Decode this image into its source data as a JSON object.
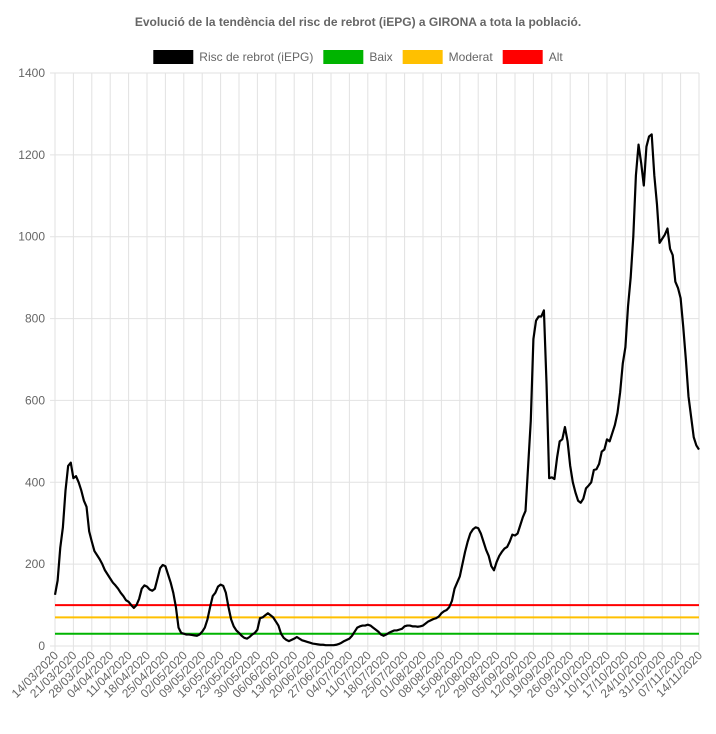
{
  "chart_data": {
    "type": "line",
    "title": "Evolució de la tendència del risc de rebrot (iEPG) a GIRONA a tota la població.",
    "categories": [
      "14/03/2020",
      null,
      null,
      null,
      null,
      null,
      null,
      "21/03/2020",
      null,
      null,
      null,
      null,
      null,
      null,
      "28/03/2020",
      null,
      null,
      null,
      null,
      null,
      null,
      "04/04/2020",
      null,
      null,
      null,
      null,
      null,
      null,
      "11/04/2020",
      null,
      null,
      null,
      null,
      null,
      null,
      "18/04/2020",
      null,
      null,
      null,
      null,
      null,
      null,
      "25/04/2020",
      null,
      null,
      null,
      null,
      null,
      null,
      "02/05/2020",
      null,
      null,
      null,
      null,
      null,
      null,
      "09/05/2020",
      null,
      null,
      null,
      null,
      null,
      null,
      "16/05/2020",
      null,
      null,
      null,
      null,
      null,
      null,
      "23/05/2020",
      null,
      null,
      null,
      null,
      null,
      null,
      "30/05/2020",
      null,
      null,
      null,
      null,
      null,
      null,
      "06/06/2020",
      null,
      null,
      null,
      null,
      null,
      null,
      "13/06/2020",
      null,
      null,
      null,
      null,
      null,
      null,
      "20/06/2020",
      null,
      null,
      null,
      null,
      null,
      null,
      "27/06/2020",
      null,
      null,
      null,
      null,
      null,
      null,
      "04/07/2020",
      null,
      null,
      null,
      null,
      null,
      null,
      "11/07/2020",
      null,
      null,
      null,
      null,
      null,
      null,
      "18/07/2020",
      null,
      null,
      null,
      null,
      null,
      null,
      "25/07/2020",
      null,
      null,
      null,
      null,
      null,
      null,
      "01/08/2020",
      null,
      null,
      null,
      null,
      null,
      null,
      "08/08/2020",
      null,
      null,
      null,
      null,
      null,
      null,
      "15/08/2020",
      null,
      null,
      null,
      null,
      null,
      null,
      "22/08/2020",
      null,
      null,
      null,
      null,
      null,
      null,
      "29/08/2020",
      null,
      null,
      null,
      null,
      null,
      null,
      "05/09/2020",
      null,
      null,
      null,
      null,
      null,
      null,
      "12/09/2020",
      null,
      null,
      null,
      null,
      null,
      null,
      "19/09/2020",
      null,
      null,
      null,
      null,
      null,
      null,
      "26/09/2020",
      null,
      null,
      null,
      null,
      null,
      null,
      "03/10/2020",
      null,
      null,
      null,
      null,
      null,
      null,
      "10/10/2020",
      null,
      null,
      null,
      null,
      null,
      null,
      "17/10/2020",
      null,
      null,
      null,
      null,
      null,
      null,
      "24/10/2020",
      null,
      null,
      null,
      null,
      null,
      null,
      "31/10/2020",
      null,
      null,
      null,
      null,
      null,
      null,
      "07/11/2020",
      null,
      null,
      null,
      null,
      null,
      null,
      "14/11/2020"
    ],
    "series": [
      {
        "name": "Risc de rebrot (iEPG)",
        "color": "#000000",
        "values": [
          125,
          160,
          240,
          290,
          380,
          440,
          448,
          410,
          415,
          400,
          380,
          355,
          340,
          280,
          255,
          232,
          222,
          212,
          200,
          185,
          175,
          165,
          155,
          148,
          140,
          130,
          122,
          112,
          108,
          100,
          93,
          100,
          115,
          140,
          148,
          145,
          138,
          135,
          140,
          165,
          190,
          198,
          195,
          175,
          155,
          130,
          95,
          45,
          32,
          30,
          28,
          28,
          27,
          26,
          25,
          28,
          35,
          45,
          65,
          95,
          122,
          130,
          145,
          150,
          147,
          130,
          95,
          65,
          48,
          38,
          32,
          25,
          20,
          18,
          22,
          28,
          32,
          40,
          68,
          70,
          75,
          80,
          75,
          70,
          60,
          50,
          30,
          20,
          15,
          12,
          15,
          18,
          22,
          18,
          14,
          12,
          10,
          8,
          6,
          5,
          4,
          3,
          3,
          2,
          2,
          2,
          2,
          3,
          5,
          8,
          12,
          15,
          18,
          25,
          35,
          45,
          48,
          50,
          50,
          52,
          50,
          45,
          40,
          35,
          28,
          25,
          28,
          32,
          35,
          38,
          38,
          40,
          42,
          48,
          50,
          50,
          48,
          48,
          47,
          48,
          50,
          55,
          60,
          63,
          66,
          68,
          72,
          80,
          85,
          88,
          95,
          110,
          140,
          155,
          170,
          200,
          230,
          255,
          275,
          285,
          290,
          288,
          275,
          255,
          235,
          220,
          195,
          185,
          205,
          220,
          230,
          238,
          242,
          255,
          272,
          270,
          275,
          295,
          315,
          330,
          440,
          550,
          750,
          795,
          805,
          805,
          820,
          640,
          410,
          412,
          408,
          460,
          500,
          505,
          535,
          500,
          440,
          400,
          375,
          355,
          350,
          360,
          385,
          392,
          400,
          430,
          432,
          445,
          475,
          480,
          505,
          500,
          520,
          540,
          570,
          620,
          690,
          730,
          830,
          900,
          1000,
          1150,
          1225,
          1180,
          1125,
          1220,
          1245,
          1250,
          1150,
          1080,
          985,
          995,
          1005,
          1020,
          970,
          955,
          890,
          875,
          850,
          780,
          700,
          610,
          560,
          510,
          490,
          480
        ]
      }
    ],
    "reference_lines": [
      {
        "name": "Baix",
        "color": "#00b400",
        "value": 30
      },
      {
        "name": "Moderat",
        "color": "#ffc000",
        "value": 70
      },
      {
        "name": "Alt",
        "color": "#ff0000",
        "value": 100
      }
    ],
    "ylim": [
      0,
      1400
    ],
    "yticks": [
      0,
      200,
      400,
      600,
      800,
      1000,
      1200,
      1400
    ],
    "grid": true
  }
}
